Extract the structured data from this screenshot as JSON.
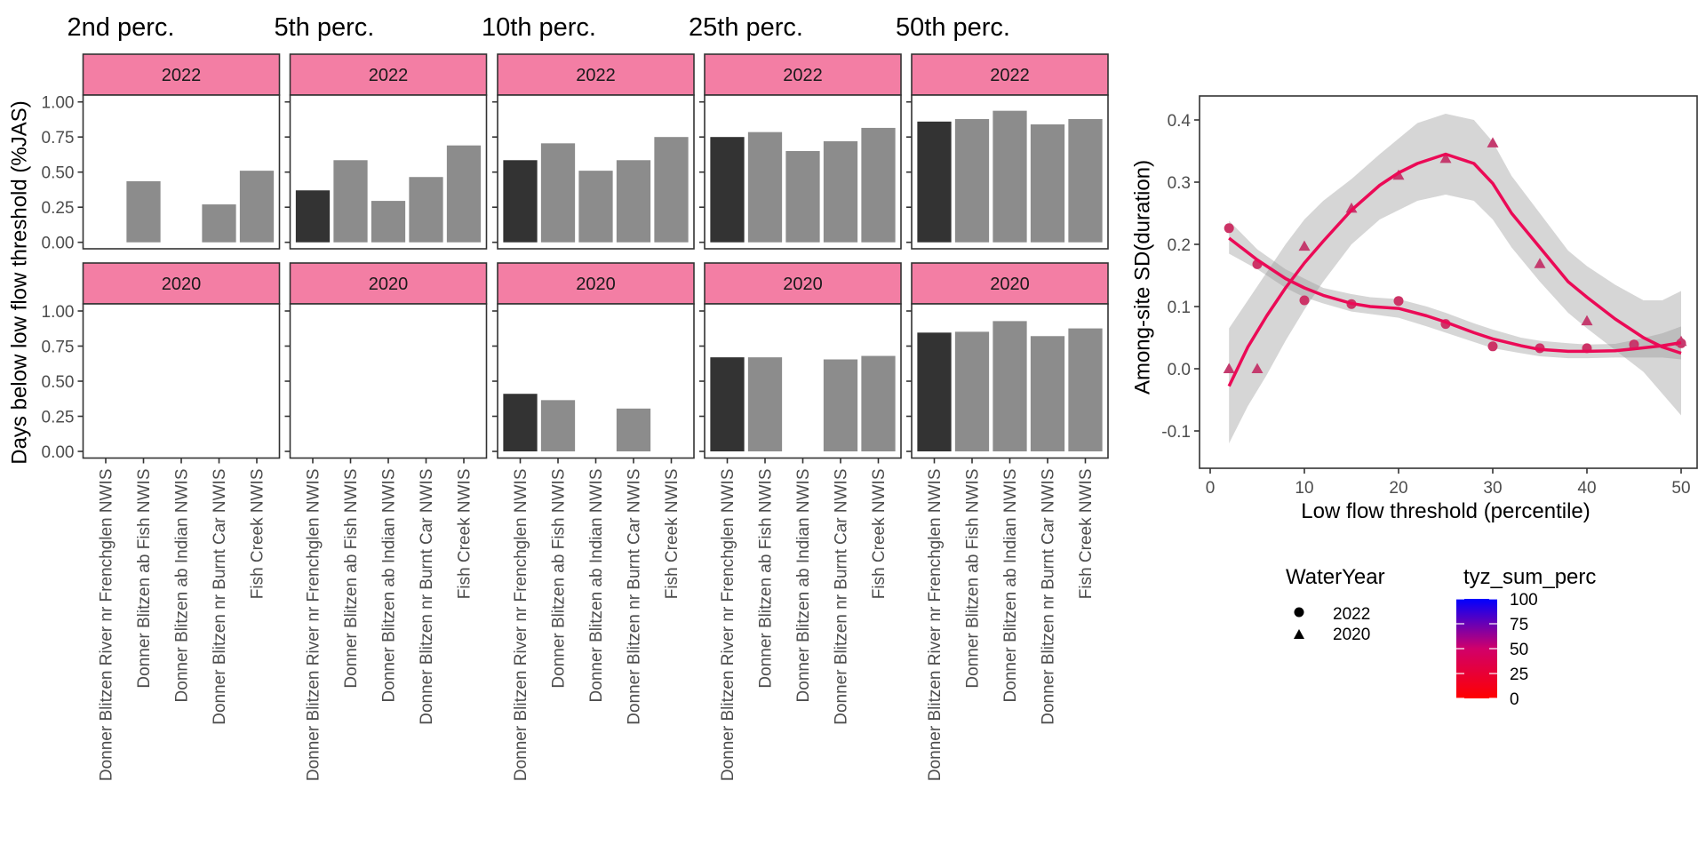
{
  "chart_data": [
    {
      "type": "bar",
      "facet": "grid",
      "ylabel": "Days below low flow threshold (%JAS)",
      "ylim": [
        0,
        1
      ],
      "yticks": [
        "0.00",
        "0.25",
        "0.50",
        "0.75",
        "1.00"
      ],
      "categories": [
        "Donner Blitzen River nr Frenchglen NWIS",
        "Donner Blitzen ab Fish NWIS",
        "Donner Blitzen ab Indian NWIS",
        "Donner Blitzen nr Burnt Car NWIS",
        "Fish Creek NWIS"
      ],
      "highlight_category": "Donner Blitzen River nr Frenchglen NWIS",
      "colors": {
        "highlight": "#333333",
        "other": "#8c8c8c",
        "strip": "#f37ea4",
        "border": "#333333"
      },
      "row_strips": [
        "2022",
        "2020"
      ],
      "panels": [
        {
          "title": "2nd perc.",
          "values": {
            "2022": [
              null,
              0.435,
              null,
              0.27,
              0.51
            ],
            "2020": [
              null,
              null,
              null,
              null,
              null
            ]
          }
        },
        {
          "title": "5th perc.",
          "values": {
            "2022": [
              0.37,
              0.585,
              0.295,
              0.465,
              0.69
            ],
            "2020": [
              null,
              null,
              null,
              null,
              null
            ]
          }
        },
        {
          "title": "10th perc.",
          "values": {
            "2022": [
              0.585,
              0.705,
              0.51,
              0.585,
              0.75
            ],
            "2020": [
              0.41,
              0.365,
              null,
              0.305,
              null
            ]
          }
        },
        {
          "title": "25th perc.",
          "values": {
            "2022": [
              0.75,
              0.785,
              0.65,
              0.72,
              0.815
            ],
            "2020": [
              0.67,
              0.67,
              null,
              0.655,
              0.68
            ]
          }
        },
        {
          "title": "50th perc.",
          "values": {
            "2022": [
              0.86,
              0.878,
              0.937,
              0.84,
              0.878
            ],
            "2020": [
              0.846,
              0.852,
              0.928,
              0.821,
              0.876
            ]
          }
        }
      ]
    },
    {
      "type": "scatter",
      "xlabel": "Low flow threshold (percentile)",
      "ylabel": "Among-site SD(duration)",
      "xlim": [
        0,
        50
      ],
      "ylim": [
        -0.15,
        0.43
      ],
      "xticks": [
        0,
        10,
        20,
        30,
        40,
        50
      ],
      "yticks": [
        -0.1,
        0.0,
        0.1,
        0.2,
        0.3,
        0.4
      ],
      "ytick_labels": [
        "-0.1",
        "0.0",
        "0.1",
        "0.2",
        "0.3",
        "0.4"
      ],
      "series": [
        {
          "name": "2022",
          "shape": "circle",
          "x": [
            2,
            5,
            10,
            15,
            20,
            25,
            30,
            35,
            40,
            45,
            50
          ],
          "y": [
            0.226,
            0.168,
            0.11,
            0.104,
            0.109,
            0.072,
            0.036,
            0.033,
            0.033,
            0.039,
            0.041
          ],
          "point_color": "#cc3366",
          "smooth": {
            "x": [
              2,
              5,
              8,
              10,
              12,
              15,
              17,
              20,
              23,
              25,
              28,
              30,
              33,
              35,
              38,
              40,
              43,
              45,
              48,
              50
            ],
            "y": [
              0.21,
              0.175,
              0.145,
              0.13,
              0.118,
              0.105,
              0.1,
              0.097,
              0.085,
              0.075,
              0.058,
              0.048,
              0.037,
              0.031,
              0.028,
              0.028,
              0.029,
              0.032,
              0.037,
              0.042
            ],
            "lower": [
              0.185,
              0.16,
              0.13,
              0.115,
              0.105,
              0.092,
              0.088,
              0.082,
              0.068,
              0.058,
              0.043,
              0.033,
              0.025,
              0.02,
              0.017,
              0.017,
              0.018,
              0.018,
              0.018,
              0.015
            ],
            "upper": [
              0.238,
              0.192,
              0.16,
              0.145,
              0.13,
              0.12,
              0.115,
              0.112,
              0.1,
              0.09,
              0.073,
              0.063,
              0.05,
              0.045,
              0.041,
              0.039,
              0.04,
              0.046,
              0.057,
              0.068
            ]
          }
        },
        {
          "name": "2020",
          "shape": "triangle",
          "x": [
            2,
            5,
            10,
            15,
            20,
            25,
            30,
            35,
            40,
            45,
            50
          ],
          "y": [
            0.0,
            0.0,
            0.197,
            0.258,
            0.311,
            0.338,
            0.363,
            0.169,
            0.077,
            0.038,
            0.044
          ],
          "point_color": "#c43b6e",
          "smooth": {
            "x": [
              2,
              4,
              6,
              8,
              10,
              12,
              15,
              18,
              20,
              22,
              25,
              28,
              30,
              32,
              35,
              38,
              40,
              43,
              46,
              48,
              50
            ],
            "y": [
              -0.028,
              0.035,
              0.085,
              0.13,
              0.17,
              0.205,
              0.255,
              0.295,
              0.315,
              0.33,
              0.345,
              0.33,
              0.298,
              0.25,
              0.195,
              0.14,
              0.115,
              0.08,
              0.05,
              0.035,
              0.025
            ],
            "lower": [
              -0.12,
              -0.06,
              -0.01,
              0.045,
              0.095,
              0.14,
              0.2,
              0.24,
              0.255,
              0.27,
              0.28,
              0.27,
              0.24,
              0.195,
              0.14,
              0.09,
              0.065,
              0.03,
              -0.005,
              -0.04,
              -0.075
            ],
            "upper": [
              0.065,
              0.11,
              0.155,
              0.2,
              0.24,
              0.27,
              0.305,
              0.345,
              0.37,
              0.395,
              0.41,
              0.4,
              0.365,
              0.31,
              0.25,
              0.19,
              0.165,
              0.135,
              0.11,
              0.11,
              0.125
            ]
          }
        }
      ],
      "line_color": "#eb0a56",
      "ribbon_color": "#999999",
      "legend": {
        "shape_title": "WaterYear",
        "shape_items": [
          {
            "label": "2022",
            "shape": "circle"
          },
          {
            "label": "2020",
            "shape": "triangle"
          }
        ],
        "color_title": "tyz_sum_perc",
        "color_breaks": [
          "100",
          "75",
          "50",
          "25",
          "0"
        ],
        "color_low": "#ff0000",
        "color_high": "#0000ff",
        "placement": "bottom"
      }
    }
  ]
}
